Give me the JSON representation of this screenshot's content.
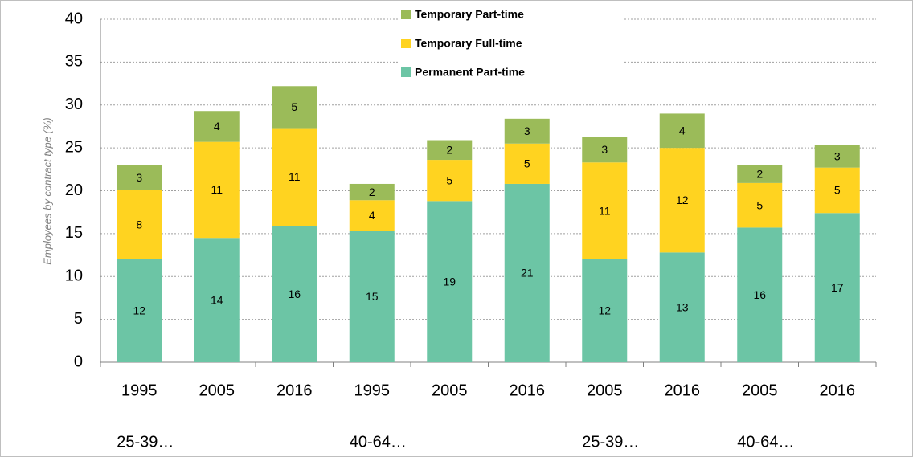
{
  "chart_data": {
    "type": "stacked-bar",
    "y_label": "Employees by contract type (%)",
    "categories": [
      "1995",
      "2005",
      "2016",
      "1995",
      "2005",
      "2016",
      "2005",
      "2016",
      "2005",
      "2016"
    ],
    "group_labels": [
      "25-39…",
      null,
      null,
      "40-64…",
      null,
      null,
      "25-39…",
      null,
      "40-64…",
      null
    ],
    "series": [
      {
        "name": "Permanent Part-time",
        "color": "#6cc5a5",
        "values": [
          12.0,
          14.5,
          15.9,
          15.3,
          18.8,
          20.8,
          12.0,
          12.8,
          15.7,
          17.4
        ],
        "value_labels": [
          "12",
          "14",
          "16",
          "15",
          "19",
          "21",
          "12",
          "13",
          "16",
          "17"
        ]
      },
      {
        "name": "Temporary Full-time",
        "color": "#ffd320",
        "values": [
          8.1,
          11.2,
          11.4,
          3.6,
          4.8,
          4.7,
          11.3,
          12.2,
          5.2,
          5.3
        ],
        "value_labels": [
          "8",
          "11",
          "11",
          "4",
          "5",
          "5",
          "11",
          "12",
          "5",
          "5"
        ]
      },
      {
        "name": "Temporary Part-time",
        "color": "#9bbb59",
        "values": [
          2.85,
          3.6,
          4.9,
          1.9,
          2.3,
          2.9,
          3.0,
          4.0,
          2.1,
          2.6
        ],
        "value_labels": [
          "3",
          "4",
          "5",
          "2",
          "2",
          "3",
          "3",
          "4",
          "2",
          "3"
        ]
      }
    ],
    "ylim": [
      0,
      40
    ],
    "yticks": [
      0,
      5,
      10,
      15,
      20,
      25,
      30,
      35,
      40
    ],
    "grid": true,
    "legend": "top"
  }
}
